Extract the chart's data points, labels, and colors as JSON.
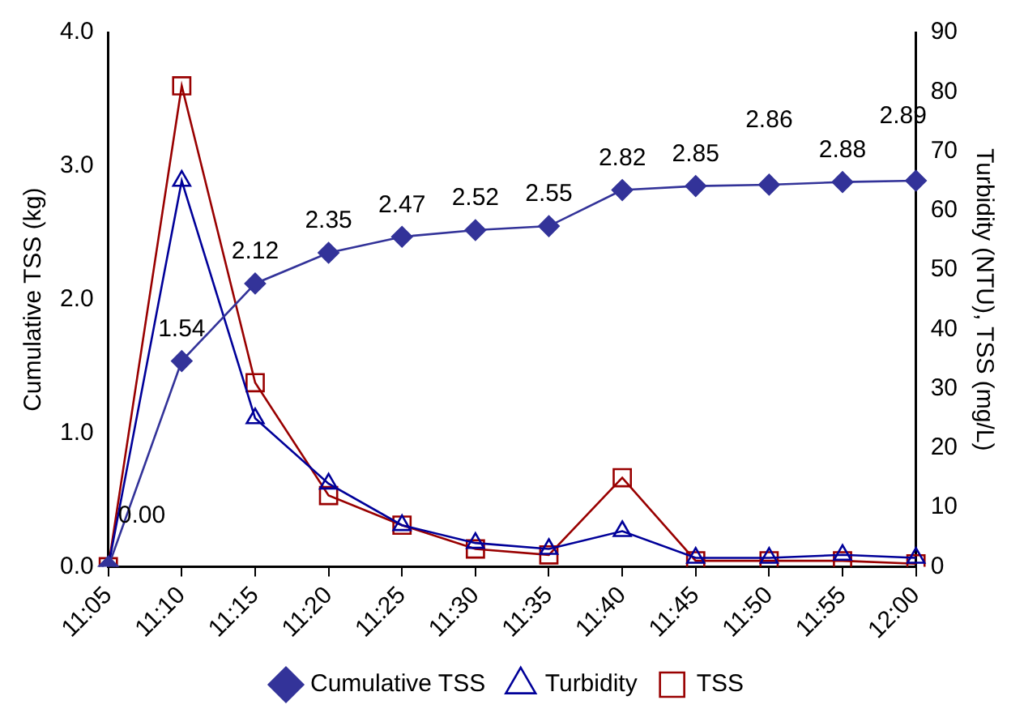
{
  "chart_data": {
    "type": "line",
    "categories": [
      "11:05",
      "11:10",
      "11:15",
      "11:20",
      "11:25",
      "11:30",
      "11:35",
      "11:40",
      "11:45",
      "11:50",
      "11:55",
      "12:00"
    ],
    "ylabel": "Cumulative TSS (kg)",
    "y2label": "Turbidity (NTU), TSS (mg/L)",
    "series": [
      {
        "name": "Cumulative TSS",
        "color": "#333399",
        "marker": "diamond",
        "values": [
          0.0,
          1.54,
          2.12,
          2.35,
          2.47,
          2.52,
          2.55,
          2.82,
          2.85,
          2.86,
          2.88,
          2.89
        ],
        "value_labels": [
          "0.00",
          "1.54",
          "2.12",
          "2.35",
          "2.47",
          "2.52",
          "2.55",
          "2.82",
          "2.85",
          "2.86",
          "2.88",
          "2.89"
        ]
      },
      {
        "name": "Turbidity",
        "color": "#000099",
        "marker": "triangle",
        "axis": "y2",
        "values": [
          0,
          65,
          25,
          14,
          7,
          4,
          3,
          6,
          1.5,
          1.5,
          2,
          1.5
        ]
      },
      {
        "name": "TSS",
        "color": "#990000",
        "marker": "square",
        "axis": "y2",
        "values": [
          0,
          81,
          31,
          12,
          7,
          3,
          2,
          15,
          1,
          1,
          1,
          0.5
        ]
      }
    ],
    "ylim": [
      0,
      4
    ],
    "yticks": [
      {
        "value": 0,
        "label": "0.0"
      },
      {
        "value": 1,
        "label": "1.0"
      },
      {
        "value": 2,
        "label": "2.0"
      },
      {
        "value": 3,
        "label": "3.0"
      },
      {
        "value": 4,
        "label": "4.0"
      }
    ],
    "y2lim": [
      0,
      90
    ],
    "y2ticks": [
      0,
      10,
      20,
      30,
      40,
      50,
      60,
      70,
      80,
      90
    ],
    "grid": false,
    "legend": "bottom"
  }
}
